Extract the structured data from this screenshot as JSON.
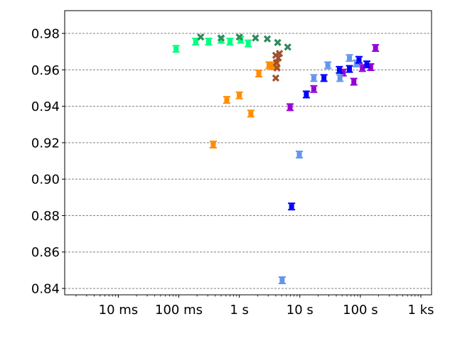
{
  "chart_data": {
    "type": "scatter",
    "x_scale": "log",
    "x_unit": "seconds",
    "xlim": [
      0.0013,
      1500
    ],
    "ylim": [
      0.8365,
      0.9925
    ],
    "grid": {
      "y": true,
      "x": false,
      "style": "dashed",
      "color": "#808080"
    },
    "x_ticks": [
      {
        "value": 0.01,
        "label": "10 ms"
      },
      {
        "value": 0.1,
        "label": "100 ms"
      },
      {
        "value": 1,
        "label": "1 s"
      },
      {
        "value": 10,
        "label": "10 s"
      },
      {
        "value": 100,
        "label": "100 s"
      },
      {
        "value": 1000,
        "label": "1 ks"
      }
    ],
    "y_ticks": [
      {
        "value": 0.84,
        "label": "0.84"
      },
      {
        "value": 0.86,
        "label": "0.86"
      },
      {
        "value": 0.88,
        "label": "0.88"
      },
      {
        "value": 0.9,
        "label": "0.90"
      },
      {
        "value": 0.92,
        "label": "0.92"
      },
      {
        "value": 0.94,
        "label": "0.94"
      },
      {
        "value": 0.96,
        "label": "0.96"
      },
      {
        "value": 0.98,
        "label": "0.98"
      }
    ],
    "series": [
      {
        "color": "#00ff7f",
        "marker": "plus",
        "points": [
          [
            0.09,
            0.9715
          ],
          [
            0.19,
            0.9755
          ],
          [
            0.31,
            0.9755
          ],
          [
            0.5,
            0.9765
          ],
          [
            0.7,
            0.9755
          ],
          [
            1.05,
            0.9765
          ],
          [
            1.4,
            0.9745
          ]
        ]
      },
      {
        "color": "#2e8b57",
        "marker": "x",
        "points": [
          [
            0.23,
            0.978
          ],
          [
            0.5,
            0.9775
          ],
          [
            1.0,
            0.978
          ],
          [
            1.85,
            0.9775
          ],
          [
            2.9,
            0.977
          ],
          [
            4.3,
            0.975
          ],
          [
            6.3,
            0.9725
          ]
        ]
      },
      {
        "color": "#ff8c00",
        "marker": "plus",
        "points": [
          [
            0.37,
            0.919
          ],
          [
            0.62,
            0.9435
          ],
          [
            1.0,
            0.946
          ],
          [
            1.55,
            0.936
          ],
          [
            2.1,
            0.958
          ],
          [
            3.1,
            0.9625
          ],
          [
            3.6,
            0.962
          ],
          [
            4.1,
            0.9625
          ]
        ]
      },
      {
        "color": "#a0522d",
        "marker": "x",
        "points": [
          [
            4.0,
            0.9555
          ],
          [
            4.2,
            0.961
          ],
          [
            4.1,
            0.964
          ],
          [
            4.4,
            0.9665
          ],
          [
            4.0,
            0.968
          ],
          [
            4.6,
            0.969
          ]
        ]
      },
      {
        "color": "#9400d3",
        "marker": "plus",
        "points": [
          [
            6.9,
            0.9395
          ],
          [
            17.0,
            0.9495
          ],
          [
            52.0,
            0.9585
          ],
          [
            78.0,
            0.9535
          ],
          [
            108.0,
            0.961
          ],
          [
            148.0,
            0.9615
          ],
          [
            178.0,
            0.972
          ]
        ]
      },
      {
        "color": "#6495ed",
        "marker": "plus",
        "points": [
          [
            5.1,
            0.8445
          ],
          [
            9.8,
            0.9135
          ],
          [
            17.0,
            0.9555
          ],
          [
            29.0,
            0.9625
          ],
          [
            46.0,
            0.9555
          ],
          [
            66.0,
            0.9665
          ],
          [
            86.0,
            0.9635
          ]
        ]
      },
      {
        "color": "#0000ff",
        "marker": "plus",
        "points": [
          [
            7.3,
            0.885
          ],
          [
            12.8,
            0.9465
          ],
          [
            25.0,
            0.9555
          ],
          [
            45.0,
            0.96
          ],
          [
            66.0,
            0.9605
          ],
          [
            95.0,
            0.9655
          ],
          [
            128.0,
            0.963
          ]
        ]
      }
    ]
  }
}
